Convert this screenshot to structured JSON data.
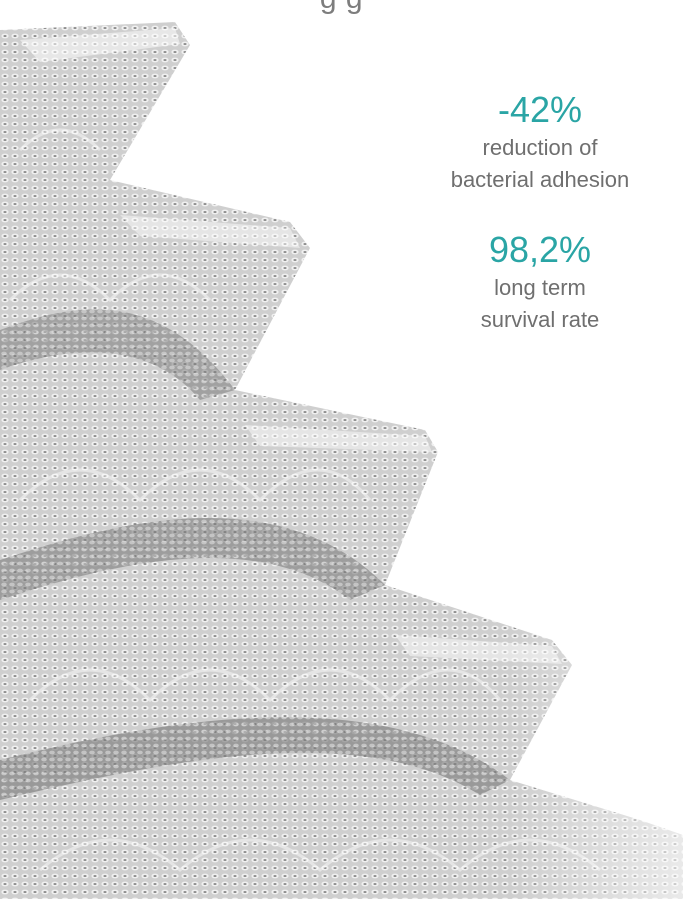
{
  "heading_fragment": "g                  g",
  "accent_color": "#2aa5a5",
  "image": {
    "subject": "threaded-implant-surface-icon"
  },
  "stats": [
    {
      "value": "-42%",
      "label_line1": "reduction of",
      "label_line2": "bacterial adhesion"
    },
    {
      "value": "98,2%",
      "label_line1": "long term",
      "label_line2": "survival rate"
    }
  ]
}
